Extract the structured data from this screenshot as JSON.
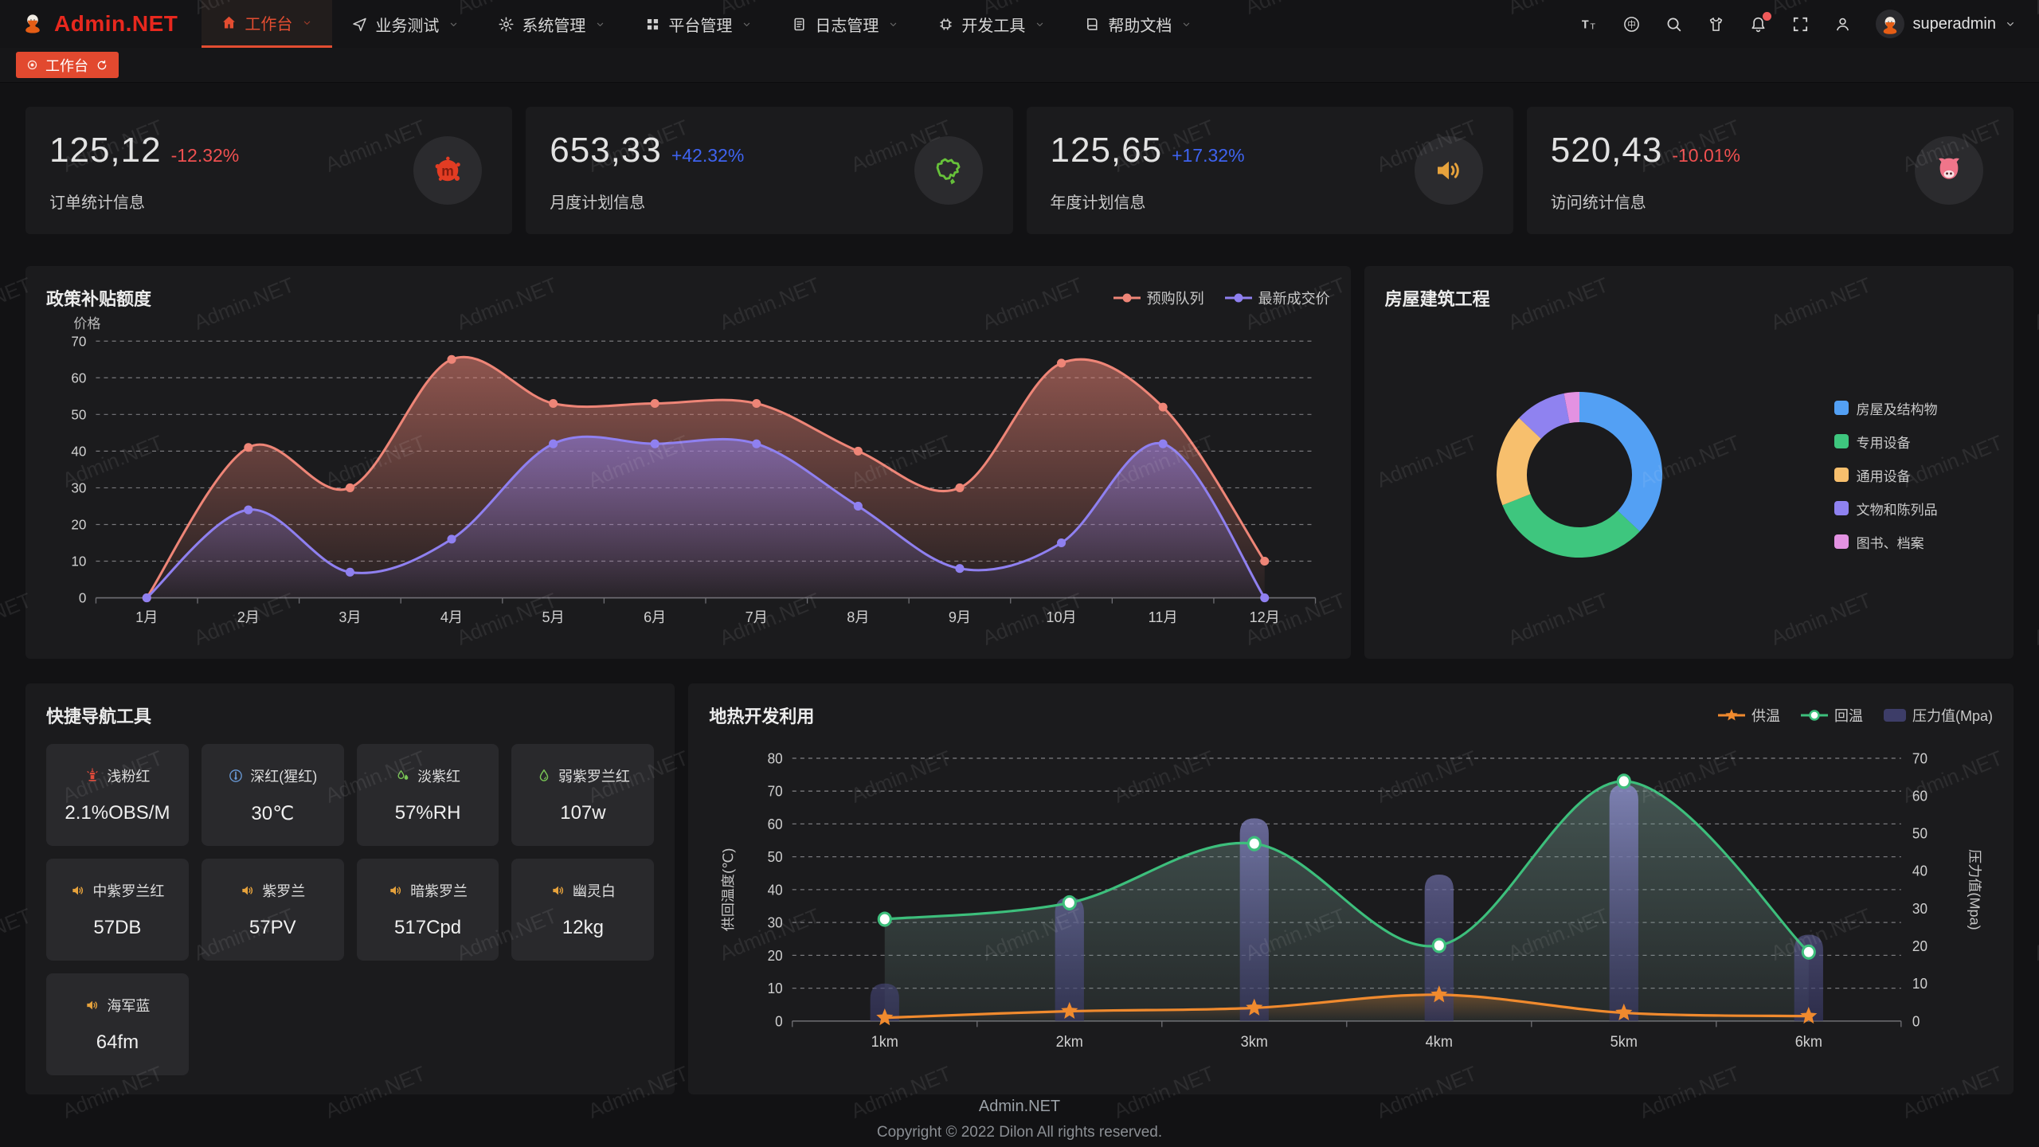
{
  "app": {
    "brand": "Admin.NET",
    "watermark": "Admin.NET"
  },
  "header": {
    "menu": [
      {
        "id": "workbench",
        "label": "工作台",
        "icon": "home-icon",
        "active": true
      },
      {
        "id": "business-test",
        "label": "业务测试",
        "icon": "send-icon",
        "active": false
      },
      {
        "id": "system-mgmt",
        "label": "系统管理",
        "icon": "gear-icon",
        "active": false
      },
      {
        "id": "platform-mgmt",
        "label": "平台管理",
        "icon": "grid-icon",
        "active": false
      },
      {
        "id": "log-mgmt",
        "label": "日志管理",
        "icon": "log-icon",
        "active": false
      },
      {
        "id": "dev-tools",
        "label": "开发工具",
        "icon": "chip-icon",
        "active": false
      },
      {
        "id": "help-docs",
        "label": "帮助文档",
        "icon": "book-icon",
        "active": false
      }
    ],
    "actions": [
      {
        "icon": "font-size-icon"
      },
      {
        "icon": "locale-icon"
      },
      {
        "icon": "search-icon"
      },
      {
        "icon": "theme-icon"
      },
      {
        "icon": "bell-icon",
        "badge": true
      },
      {
        "icon": "fullscreen-icon"
      },
      {
        "icon": "user-icon"
      }
    ],
    "user": {
      "name": "superadmin"
    }
  },
  "tabs": {
    "items": [
      {
        "label": "工作台",
        "active": true
      }
    ]
  },
  "stats": [
    {
      "value": "125,12",
      "delta": "-12.32%",
      "trend": "down",
      "label": "订单统计信息",
      "icon": "meetup-splat-icon",
      "icon_color": "#e23c23"
    },
    {
      "value": "653,33",
      "delta": "+42.32%",
      "trend": "up",
      "label": "月度计划信息",
      "icon": "china-map-icon",
      "icon_color": "#67c23a"
    },
    {
      "value": "125,65",
      "delta": "+17.32%",
      "trend": "up",
      "label": "年度计划信息",
      "icon": "speaker-icon",
      "icon_color": "#e6a23c"
    },
    {
      "value": "520,43",
      "delta": "-10.01%",
      "trend": "down",
      "label": "访问统计信息",
      "icon": "cat-icon",
      "icon_color": "#f0758a"
    }
  ],
  "chart_data": [
    {
      "type": "area",
      "title": "政策补贴额度",
      "ylabel": "价格",
      "ylim": [
        0,
        70
      ],
      "grid": true,
      "legend_position": "top-right",
      "categories": [
        "1月",
        "2月",
        "3月",
        "4月",
        "5月",
        "6月",
        "7月",
        "8月",
        "9月",
        "10月",
        "11月",
        "12月"
      ],
      "series": [
        {
          "name": "预购队列",
          "color": "#ee8577",
          "values": [
            0,
            41,
            30,
            65,
            53,
            53,
            53,
            40,
            30,
            64,
            52,
            10
          ]
        },
        {
          "name": "最新成交价",
          "color": "#8f80f0",
          "values": [
            0,
            24,
            7,
            16,
            42,
            42,
            42,
            25,
            8,
            15,
            42,
            0
          ]
        }
      ]
    },
    {
      "type": "pie",
      "title": "房屋建筑工程",
      "donut": true,
      "legend_position": "right",
      "slices": [
        {
          "label": "房屋及结构物",
          "value": 37,
          "color": "#53a0f4"
        },
        {
          "label": "专用设备",
          "value": 32,
          "color": "#3ec67e"
        },
        {
          "label": "通用设备",
          "value": 18,
          "color": "#f7bf6d"
        },
        {
          "label": "文物和陈列品",
          "value": 10,
          "color": "#8f82f0"
        },
        {
          "label": "图书、档案",
          "value": 3,
          "color": "#e392e2"
        }
      ]
    },
    {
      "type": "mixed",
      "title": "地热开发利用",
      "categories": [
        "1km",
        "2km",
        "3km",
        "4km",
        "5km",
        "6km"
      ],
      "left_axis": {
        "label": "供回温度(℃)",
        "max": 80
      },
      "right_axis": {
        "label": "压力值(Mpa)",
        "max": 70
      },
      "series": [
        {
          "name": "供温",
          "type": "line",
          "marker": "star",
          "color": "#f08a2e",
          "axis": "left",
          "values": [
            1,
            3,
            4,
            8,
            2.5,
            1.5
          ]
        },
        {
          "name": "回温",
          "type": "line",
          "marker": "circle",
          "color": "#3dbf7c",
          "axis": "left",
          "values": [
            31,
            36,
            54,
            23,
            73,
            21
          ]
        },
        {
          "name": "压力值(Mpa)",
          "type": "bar",
          "marker": "rect",
          "color": "#8c8cc8",
          "axis": "right",
          "values": [
            10,
            33,
            54,
            39,
            63,
            23
          ]
        }
      ]
    }
  ],
  "quicknav": {
    "title": "快捷导航工具",
    "items": [
      {
        "label": "浅粉红",
        "value": "2.1%OBS/M",
        "icon": "hydrant-icon",
        "icon_color": "#e04b3b"
      },
      {
        "label": "深红(猩红)",
        "value": "30℃",
        "icon": "thermometer-icon",
        "icon_color": "#6a9bd8"
      },
      {
        "label": "淡紫红",
        "value": "57%RH",
        "icon": "humidity-icon",
        "icon_color": "#7ac756"
      },
      {
        "label": "弱紫罗兰红",
        "value": "107w",
        "icon": "droplet-icon",
        "icon_color": "#7ac756"
      },
      {
        "label": "中紫罗兰红",
        "value": "57DB",
        "icon": "speaker-icon",
        "icon_color": "#e6a23c"
      },
      {
        "label": "紫罗兰",
        "value": "57PV",
        "icon": "speaker-icon",
        "icon_color": "#e6a23c"
      },
      {
        "label": "暗紫罗兰",
        "value": "517Cpd",
        "icon": "speaker-icon",
        "icon_color": "#e6a23c"
      },
      {
        "label": "幽灵白",
        "value": "12kg",
        "icon": "speaker-icon",
        "icon_color": "#e6a23c"
      },
      {
        "label": "海军蓝",
        "value": "64fm",
        "icon": "speaker-icon",
        "icon_color": "#e6a23c"
      }
    ]
  },
  "footer": {
    "line1": "Admin.NET",
    "line2": "Copyright © 2022 Dilon All rights reserved."
  },
  "colors": {
    "accent": "#e2492f",
    "up": "#3e63f0",
    "down": "#ef5050",
    "card_bg": "#1b1b1d",
    "page_bg": "#121214"
  }
}
